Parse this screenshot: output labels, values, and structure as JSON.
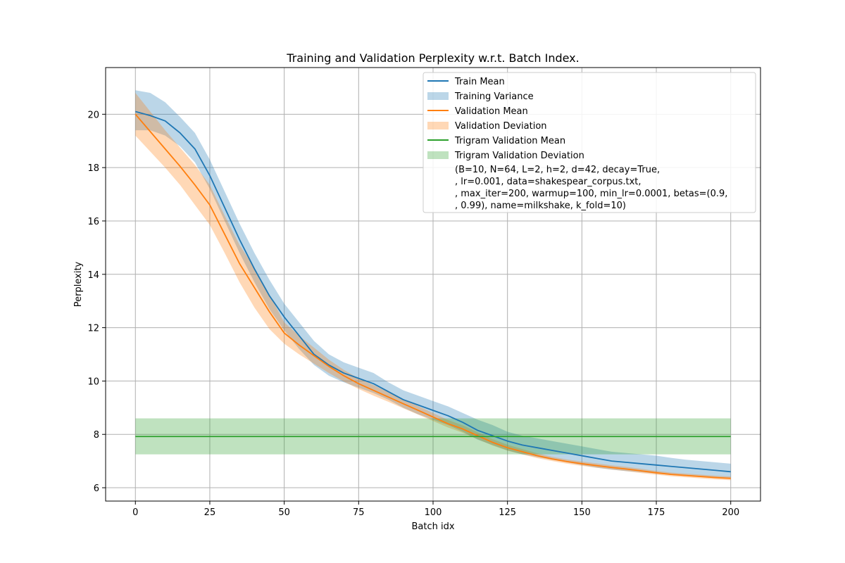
{
  "chart_data": {
    "type": "line",
    "title": "Training and Validation Perplexity w.r.t. Batch Index.",
    "xlabel": "Batch idx",
    "ylabel": "Perplexity",
    "xlim": [
      -10,
      210
    ],
    "ylim": [
      5.5,
      21.75
    ],
    "xticks": [
      0,
      25,
      50,
      75,
      100,
      125,
      150,
      175,
      200
    ],
    "yticks": [
      6,
      8,
      10,
      12,
      14,
      16,
      18,
      20
    ],
    "grid": true,
    "legend_position": "upper right",
    "colors": {
      "train": "#1f77b4",
      "validation": "#ff7f0e",
      "trigram": "#2ca02c"
    },
    "series": [
      {
        "name": "Train Mean",
        "kind": "line",
        "color": "#1f77b4",
        "x": [
          0,
          5,
          10,
          15,
          20,
          25,
          30,
          35,
          40,
          45,
          50,
          55,
          60,
          65,
          70,
          75,
          80,
          85,
          90,
          95,
          100,
          105,
          110,
          115,
          120,
          125,
          130,
          135,
          140,
          145,
          150,
          155,
          160,
          165,
          170,
          175,
          180,
          185,
          190,
          195,
          200
        ],
        "y": [
          20.1,
          19.95,
          19.75,
          19.3,
          18.7,
          17.7,
          16.5,
          15.3,
          14.2,
          13.2,
          12.4,
          11.7,
          11.0,
          10.6,
          10.3,
          10.1,
          9.9,
          9.6,
          9.3,
          9.1,
          8.9,
          8.7,
          8.45,
          8.15,
          7.95,
          7.75,
          7.6,
          7.5,
          7.4,
          7.3,
          7.2,
          7.1,
          7.0,
          6.95,
          6.9,
          6.85,
          6.8,
          6.75,
          6.7,
          6.65,
          6.6
        ]
      },
      {
        "name": "Training Variance",
        "kind": "band",
        "color": "#1f77b4",
        "x": [
          0,
          5,
          10,
          15,
          20,
          25,
          30,
          35,
          40,
          45,
          50,
          55,
          60,
          65,
          70,
          75,
          80,
          85,
          90,
          95,
          100,
          105,
          110,
          115,
          120,
          125,
          130,
          135,
          140,
          145,
          150,
          155,
          160,
          165,
          170,
          175,
          180,
          185,
          190,
          195,
          200
        ],
        "lower": [
          19.4,
          19.4,
          19.2,
          18.8,
          18.2,
          17.2,
          16.0,
          14.8,
          13.7,
          12.7,
          11.9,
          11.2,
          10.6,
          10.2,
          9.95,
          9.75,
          9.55,
          9.3,
          9.0,
          8.75,
          8.55,
          8.35,
          8.1,
          7.8,
          7.6,
          7.4,
          7.25,
          7.15,
          7.05,
          6.95,
          6.85,
          6.75,
          6.68,
          6.62,
          6.58,
          6.53,
          6.48,
          6.44,
          6.4,
          6.38,
          6.35
        ],
        "upper": [
          20.9,
          20.8,
          20.45,
          19.9,
          19.3,
          18.3,
          17.1,
          15.9,
          14.8,
          13.8,
          12.9,
          12.2,
          11.5,
          11.0,
          10.7,
          10.5,
          10.3,
          9.95,
          9.65,
          9.45,
          9.25,
          9.05,
          8.8,
          8.55,
          8.35,
          8.1,
          7.95,
          7.85,
          7.75,
          7.65,
          7.55,
          7.45,
          7.35,
          7.3,
          7.25,
          7.2,
          7.12,
          7.05,
          7.0,
          6.95,
          6.9
        ]
      },
      {
        "name": "Validation Mean",
        "kind": "line",
        "color": "#ff7f0e",
        "x": [
          0,
          5,
          10,
          15,
          20,
          25,
          30,
          35,
          40,
          45,
          50,
          55,
          60,
          65,
          70,
          75,
          80,
          85,
          90,
          95,
          100,
          105,
          110,
          115,
          120,
          125,
          130,
          135,
          140,
          145,
          150,
          155,
          160,
          165,
          170,
          175,
          180,
          185,
          190,
          195,
          200
        ],
        "y": [
          20.0,
          19.35,
          18.7,
          18.05,
          17.35,
          16.6,
          15.5,
          14.4,
          13.5,
          12.6,
          11.8,
          11.35,
          10.95,
          10.55,
          10.2,
          9.9,
          9.65,
          9.4,
          9.15,
          8.9,
          8.65,
          8.4,
          8.2,
          7.95,
          7.7,
          7.5,
          7.35,
          7.2,
          7.08,
          6.98,
          6.9,
          6.83,
          6.76,
          6.7,
          6.63,
          6.56,
          6.5,
          6.46,
          6.42,
          6.38,
          6.35
        ]
      },
      {
        "name": "Validation Deviation",
        "kind": "band",
        "color": "#ff7f0e",
        "x": [
          0,
          5,
          10,
          15,
          20,
          25,
          30,
          35,
          40,
          45,
          50,
          55,
          60,
          65,
          70,
          75,
          80,
          85,
          90,
          95,
          100,
          105,
          110,
          115,
          120,
          125,
          130,
          135,
          140,
          145,
          150,
          155,
          160,
          165,
          170,
          175,
          180,
          185,
          190,
          195,
          200
        ],
        "lower": [
          19.2,
          18.6,
          18.0,
          17.35,
          16.6,
          15.85,
          14.8,
          13.7,
          12.75,
          11.95,
          11.4,
          11.0,
          10.65,
          10.3,
          9.98,
          9.7,
          9.45,
          9.22,
          8.98,
          8.74,
          8.5,
          8.26,
          8.06,
          7.82,
          7.58,
          7.39,
          7.25,
          7.11,
          7.0,
          6.9,
          6.82,
          6.75,
          6.68,
          6.62,
          6.55,
          6.49,
          6.43,
          6.39,
          6.35,
          6.31,
          6.28
        ],
        "upper": [
          20.8,
          20.1,
          19.4,
          18.75,
          18.1,
          17.35,
          16.2,
          15.1,
          14.25,
          13.25,
          12.2,
          11.7,
          11.25,
          10.8,
          10.42,
          10.1,
          9.85,
          9.58,
          9.32,
          9.06,
          8.8,
          8.54,
          8.34,
          8.08,
          7.82,
          7.61,
          7.45,
          7.29,
          7.16,
          7.06,
          6.98,
          6.91,
          6.84,
          6.78,
          6.71,
          6.63,
          6.57,
          6.53,
          6.49,
          6.45,
          6.42
        ]
      },
      {
        "name": "Trigram Validation Mean",
        "kind": "line",
        "color": "#2ca02c",
        "x": [
          0,
          200
        ],
        "y": [
          7.92,
          7.92
        ]
      },
      {
        "name": "Trigram Validation Deviation",
        "kind": "band",
        "color": "#2ca02c",
        "x": [
          0,
          200
        ],
        "lower": [
          7.25,
          7.25
        ],
        "upper": [
          8.6,
          8.6
        ]
      }
    ],
    "legend_note": [
      "(B=10, N=64, L=2, h=2, d=42, decay=True,",
      ", lr=0.001, data=shakespear_corpus.txt,",
      ",  max_iter=200, warmup=100, min_lr=0.0001, betas=(0.9,",
      ", 0.99), name=milkshake, k_fold=10)"
    ]
  }
}
